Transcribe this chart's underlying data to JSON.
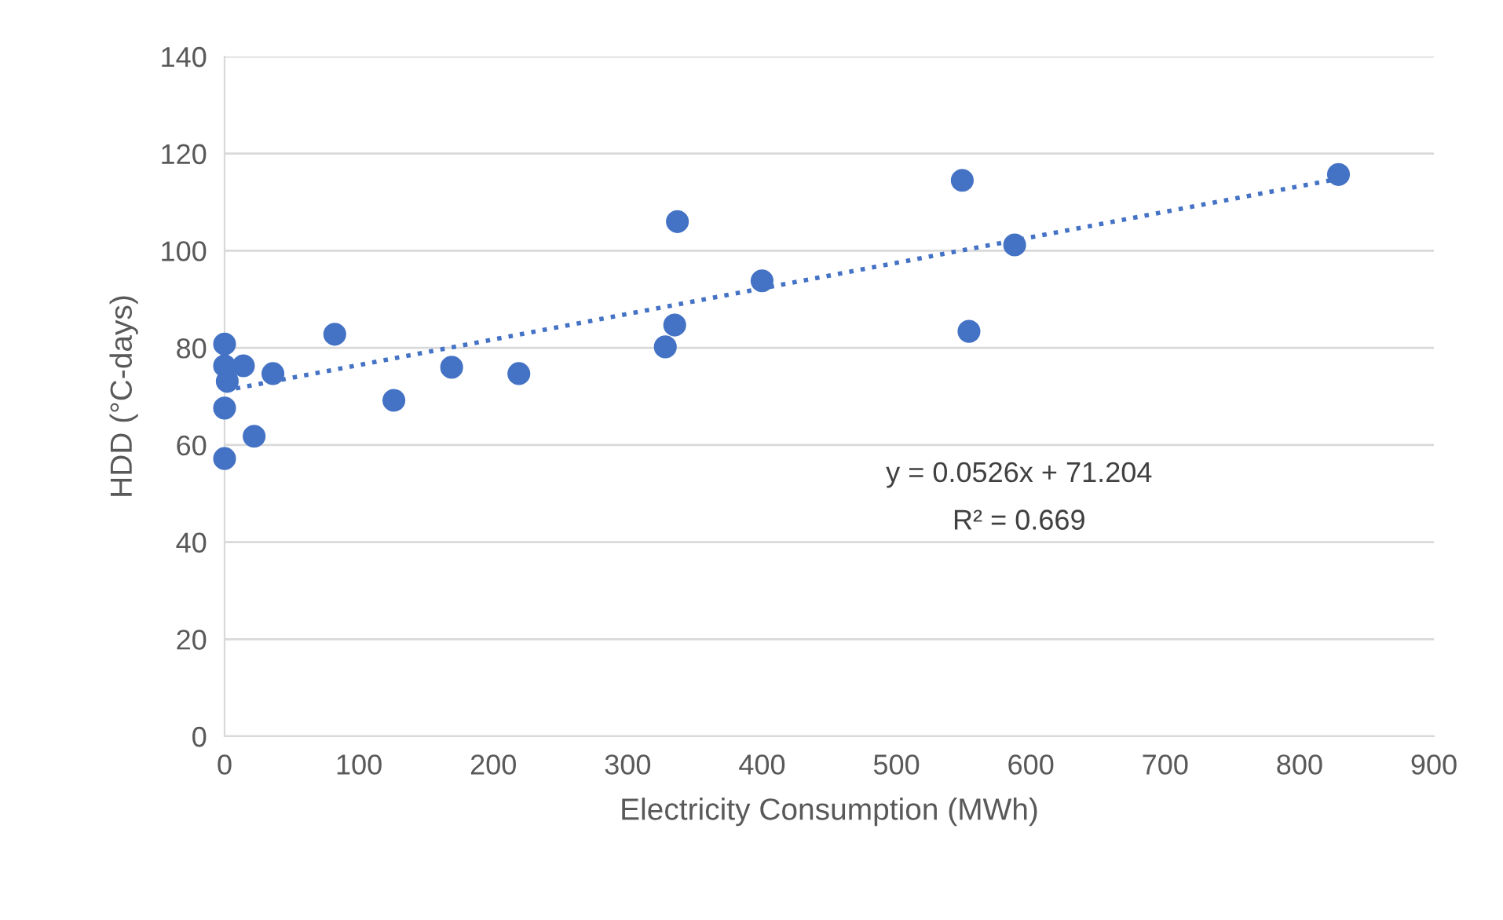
{
  "chart_data": {
    "type": "scatter",
    "xlabel": "Electricity Consumption (MWh)",
    "ylabel": "HDD (°C-days)",
    "xlim": [
      0,
      900
    ],
    "xticks": [
      0,
      100,
      200,
      300,
      400,
      500,
      600,
      700,
      800,
      900
    ],
    "ylim": [
      0,
      140
    ],
    "yticks": [
      0,
      20,
      40,
      60,
      80,
      100,
      120,
      140
    ],
    "grid": "y",
    "legend": false,
    "series": [
      {
        "color": "#4472c4",
        "marker": "circle",
        "x": [
          0,
          0,
          2,
          0,
          0,
          14,
          22,
          36,
          82,
          126,
          169,
          219,
          328,
          335,
          337,
          400,
          549,
          554,
          588,
          829
        ],
        "values": [
          80.8,
          76.3,
          73.1,
          67.6,
          57.2,
          76.3,
          61.8,
          74.7,
          82.8,
          69.2,
          76.0,
          74.7,
          80.2,
          84.7,
          106.0,
          93.8,
          114.5,
          83.4,
          101.2,
          115.7
        ]
      },
      {
        "type": "line",
        "color": "#4472c4",
        "line_style": "dotted",
        "marker": "none",
        "x": [
          0,
          829
        ],
        "values": [
          71.2,
          114.8
        ]
      }
    ],
    "annotations": [
      "y = 0.0526x + 71.204",
      "R² = 0.669"
    ]
  }
}
